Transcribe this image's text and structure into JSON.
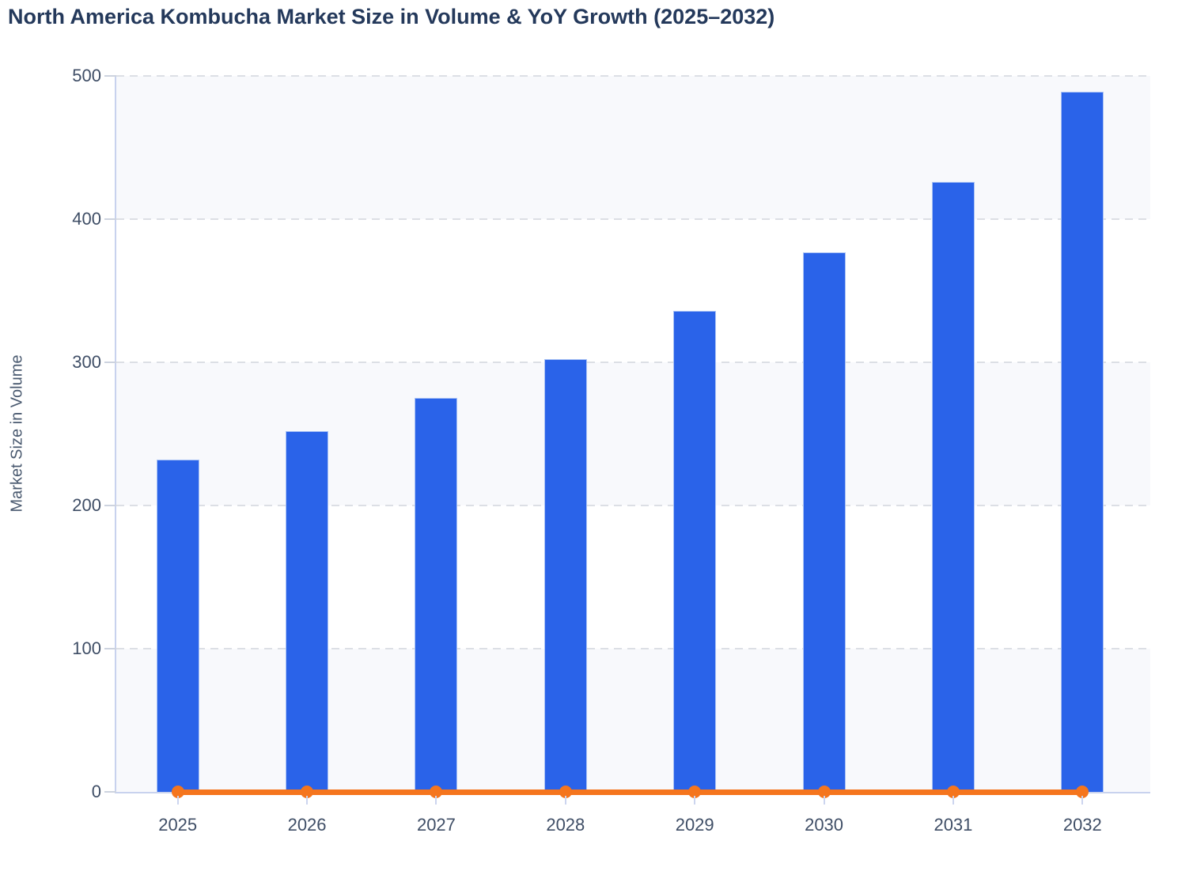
{
  "title": "North America Kombucha Market Size in Volume & YoY Growth (2025–2032)",
  "chart_data": {
    "type": "bar",
    "title": "North America Kombucha Market Size in Volume & YoY Growth (2025–2032)",
    "categories": [
      "2025",
      "2026",
      "2027",
      "2028",
      "2029",
      "2030",
      "2031",
      "2032"
    ],
    "series": [
      {
        "name": "Market Size in Volume",
        "type": "bar",
        "color": "#2a63e9",
        "values": [
          232,
          252,
          275,
          302,
          336,
          377,
          426,
          489
        ],
        "value_note": "values estimated from bar heights against gridlines; no data labels shown"
      },
      {
        "name": "YoY Growth",
        "type": "line",
        "color": "#f5751d",
        "values": [
          0,
          0,
          0,
          0,
          0,
          0,
          0,
          0
        ],
        "value_note": "flat orange line with round markers drawn along the zero baseline; no secondary axis labels visible"
      }
    ],
    "xlabel": "",
    "ylabel": "Market Size in Volume",
    "ylim": [
      0,
      500
    ],
    "yticks": [
      0,
      100,
      200,
      300,
      400,
      500
    ],
    "grid": "horizontal dashed gridlines",
    "plot_bands": "alternating light blue-gray bands every 100 units (0–100, 200–300, 400–500)",
    "legend": "none"
  },
  "colors": {
    "bar": "#2a63e9",
    "bar_border": "#a9c2f5",
    "line": "#f5751d",
    "title_text": "#24395b",
    "tick_text": "#3f4e66",
    "axis_line": "#c8d2ee",
    "gridline": "#dcdfe5",
    "band": "#f8f9fc",
    "background": "#ffffff"
  }
}
